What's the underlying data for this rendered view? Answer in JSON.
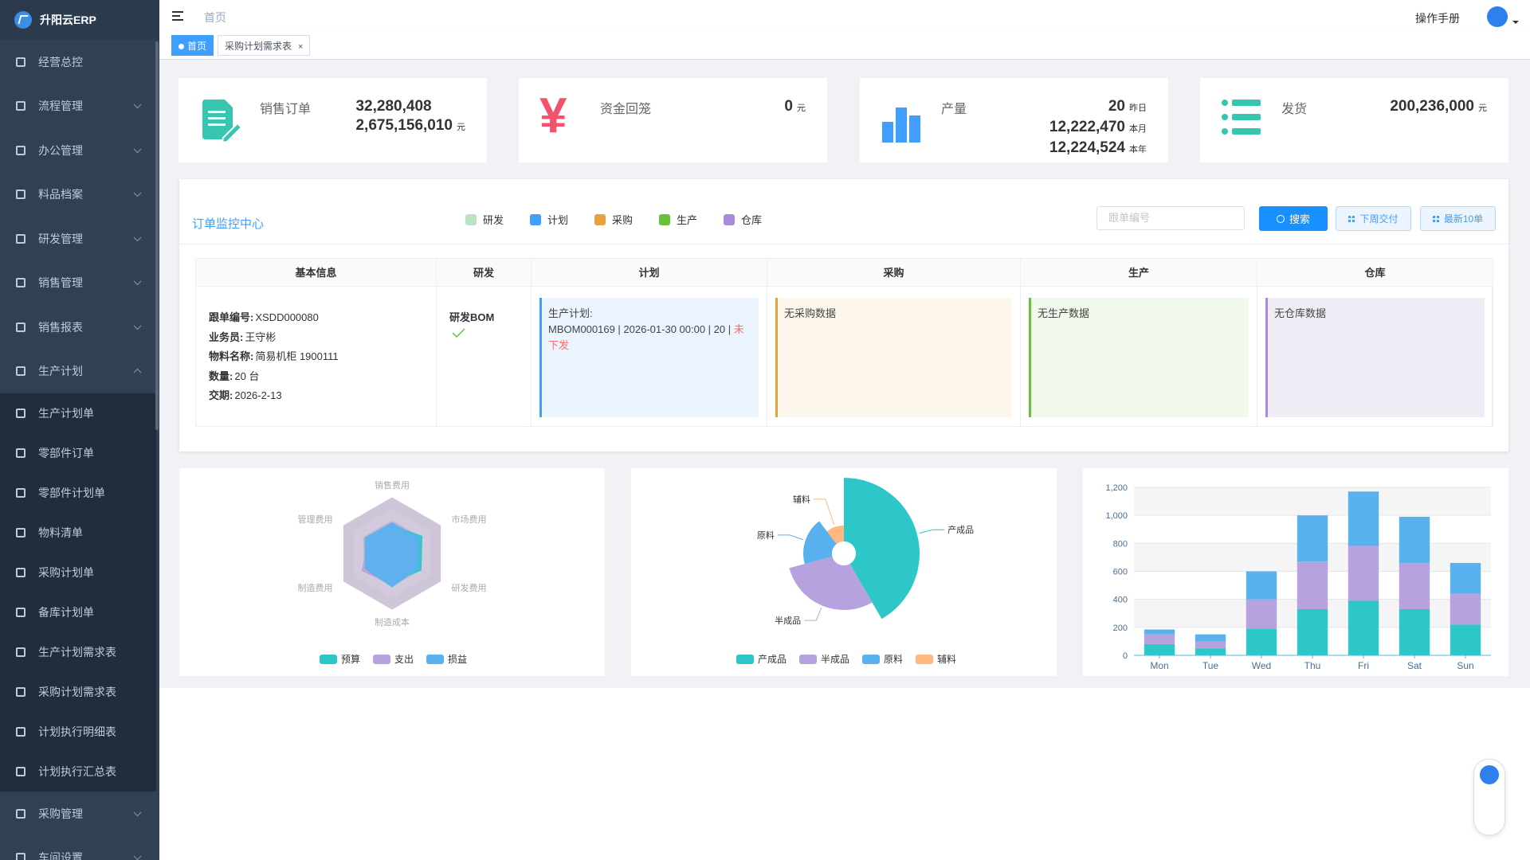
{
  "sidebar": {
    "brand": "升阳云ERP",
    "menu": [
      {
        "label": "经营总控"
      },
      {
        "label": "流程管理"
      },
      {
        "label": "办公管理"
      },
      {
        "label": "料品档案"
      },
      {
        "label": "研发管理"
      },
      {
        "label": "销售管理"
      },
      {
        "label": "销售报表"
      },
      {
        "label": "生产计划",
        "children": [
          "生产计划单",
          "零部件订单",
          "零部件计划单",
          "物料清单",
          "采购计划单",
          "备库计划单",
          "生产计划需求表",
          "采购计划需求表",
          "计划执行明细表",
          "计划执行汇总表"
        ]
      },
      {
        "label": "采购管理"
      },
      {
        "label": "车间设置"
      }
    ]
  },
  "header": {
    "breadcrumb": "首页",
    "manual": "操作手册"
  },
  "tabs": [
    {
      "label": "首页"
    },
    {
      "label": "采购计划需求表",
      "close": "×"
    }
  ],
  "stats": [
    {
      "title": "销售订单",
      "rows": [
        {
          "value": "32,280,408"
        },
        {
          "value": "2,675,156,010",
          "unit": "元"
        }
      ]
    },
    {
      "title": "资金回笼",
      "icon": "¥",
      "rows": [
        {
          "value": "0",
          "unit": "元"
        }
      ]
    },
    {
      "title": "产量",
      "rows": [
        {
          "value": "20",
          "unit": "昨日"
        },
        {
          "value": "12,222,470",
          "unit": "本月"
        },
        {
          "value": "12,224,524",
          "unit": "本年"
        }
      ]
    },
    {
      "title": "发货",
      "rows": [
        {
          "value": "200,236,000",
          "unit": "元"
        }
      ]
    }
  ],
  "monitor": {
    "title": "订单监控中心",
    "legend": [
      {
        "label": "研发",
        "color": "#b9e4c2"
      },
      {
        "label": "计划",
        "color": "#409eff"
      },
      {
        "label": "采购",
        "color": "#e6a23c"
      },
      {
        "label": "生产",
        "color": "#67c23a"
      },
      {
        "label": "仓库",
        "color": "#a98bd9"
      }
    ],
    "search_placeholder": "跟单编号",
    "search": "搜索",
    "buttons": [
      "下周交付",
      "最新10单"
    ],
    "columns": [
      "基本信息",
      "研发",
      "计划",
      "采购",
      "生产",
      "仓库"
    ],
    "order": {
      "fields": [
        {
          "label": "跟单编号:",
          "value": "XSDD000080"
        },
        {
          "label": "业务员:",
          "value": "王守彬"
        },
        {
          "label": "物料名称:",
          "value": "简易机柜 1900111"
        },
        {
          "label": "数量:",
          "value": "20 台"
        },
        {
          "label": "交期:",
          "value": "2026-2-13"
        }
      ],
      "rd": "研发BOM",
      "plan_title": "生产计划:",
      "plan_text": "MBOM000169 | 2026-01-30 00:00 | 20 | ",
      "plan_status": "未下发",
      "purchase": "无采购数据",
      "production": "无生产数据",
      "warehouse": "无仓库数据"
    }
  },
  "chart_data": [
    {
      "type": "radar",
      "indicators": [
        "销售费用",
        "市场费用",
        "研发费用",
        "制造成本",
        "制造费用",
        "管理费用"
      ],
      "rlim": [
        0,
        100
      ],
      "series": [
        {
          "name": "预算",
          "color": "#2ec7c9",
          "values": [
            50,
            62,
            60,
            52,
            45,
            50
          ]
        },
        {
          "name": "支出",
          "color": "#b6a2de",
          "values": [
            45,
            50,
            50,
            56,
            62,
            48
          ]
        },
        {
          "name": "损益",
          "color": "#5ab1ef",
          "values": [
            55,
            56,
            54,
            60,
            55,
            56
          ]
        }
      ]
    },
    {
      "type": "pie",
      "rose": true,
      "categories": [
        "产成品",
        "半成品",
        "原料",
        "辅料"
      ],
      "values": [
        40,
        28,
        18,
        10
      ],
      "colors": [
        "#2ec7c9",
        "#b6a2de",
        "#5ab1ef",
        "#ffb980"
      ]
    },
    {
      "type": "bar",
      "stacked": true,
      "categories": [
        "Mon",
        "Tue",
        "Wed",
        "Thu",
        "Fri",
        "Sat",
        "Sun"
      ],
      "series": [
        {
          "color": "#2ec7c9",
          "values": [
            80,
            50,
            190,
            330,
            390,
            330,
            220
          ]
        },
        {
          "color": "#b6a2de",
          "values": [
            70,
            50,
            210,
            340,
            390,
            330,
            220
          ]
        },
        {
          "color": "#5ab1ef",
          "values": [
            35,
            50,
            200,
            330,
            390,
            330,
            220
          ]
        }
      ],
      "ylim": [
        0,
        1200
      ],
      "yticks": [
        0,
        200,
        400,
        600,
        800,
        {
          "value": 1000,
          "label": "1,000"
        },
        {
          "value": 1200,
          "label": "1,200"
        }
      ],
      "grid": true
    }
  ]
}
